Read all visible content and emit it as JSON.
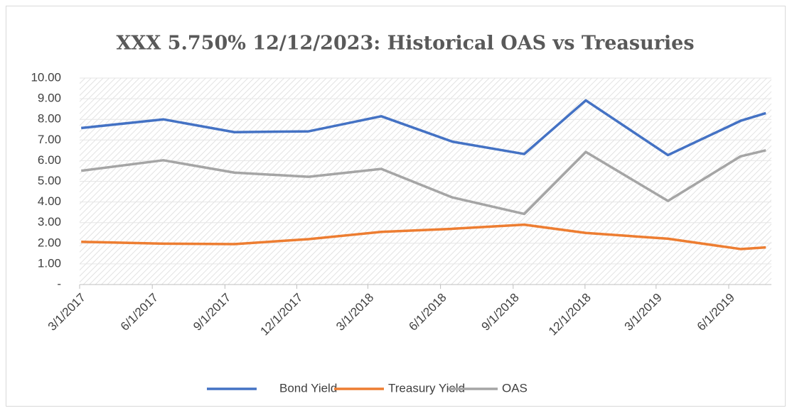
{
  "chart_data": {
    "type": "line",
    "title": "XXX 5.750% 12/12/2023: Historical OAS vs Treasuries",
    "x": [
      "3/3/2017",
      "6/15/2017",
      "9/13/2017",
      "12/16/2017",
      "3/18/2018",
      "6/16/2018",
      "9/15/2018",
      "12/2/2018",
      "3/16/2019",
      "6/16/2019",
      "7/18/2019"
    ],
    "xlim": [
      "3/1/2017",
      "7/25/2019"
    ],
    "xticks": [
      "3/1/2017",
      "6/1/2017",
      "9/1/2017",
      "12/1/2017",
      "3/1/2018",
      "6/1/2018",
      "9/1/2018",
      "12/1/2018",
      "3/1/2019",
      "6/1/2019"
    ],
    "ylim": [
      0,
      10
    ],
    "yticks": [
      {
        "value": 0,
        "label": "-"
      },
      {
        "value": 1,
        "label": "1.00"
      },
      {
        "value": 2,
        "label": "2.00"
      },
      {
        "value": 3,
        "label": "3.00"
      },
      {
        "value": 4,
        "label": "4.00"
      },
      {
        "value": 5,
        "label": "5.00"
      },
      {
        "value": 6,
        "label": "6.00"
      },
      {
        "value": 7,
        "label": "7.00"
      },
      {
        "value": 8,
        "label": "8.00"
      },
      {
        "value": 9,
        "label": "9.00"
      },
      {
        "value": 10,
        "label": "10.00"
      }
    ],
    "grid": true,
    "legend": "bottom",
    "series": [
      {
        "name": "Bond Yield",
        "color": "#4472c4",
        "values": [
          7.58,
          8.0,
          7.38,
          7.42,
          8.15,
          6.92,
          6.32,
          8.92,
          6.27,
          7.93,
          8.3
        ]
      },
      {
        "name": "Treasury Yield",
        "color": "#ed7d31",
        "values": [
          2.07,
          1.98,
          1.96,
          2.2,
          2.55,
          2.7,
          2.9,
          2.5,
          2.22,
          1.72,
          1.8
        ]
      },
      {
        "name": "OAS",
        "color": "#a5a5a5",
        "values": [
          5.51,
          6.02,
          5.42,
          5.22,
          5.6,
          4.22,
          3.42,
          6.42,
          4.05,
          6.21,
          6.5
        ]
      }
    ]
  }
}
